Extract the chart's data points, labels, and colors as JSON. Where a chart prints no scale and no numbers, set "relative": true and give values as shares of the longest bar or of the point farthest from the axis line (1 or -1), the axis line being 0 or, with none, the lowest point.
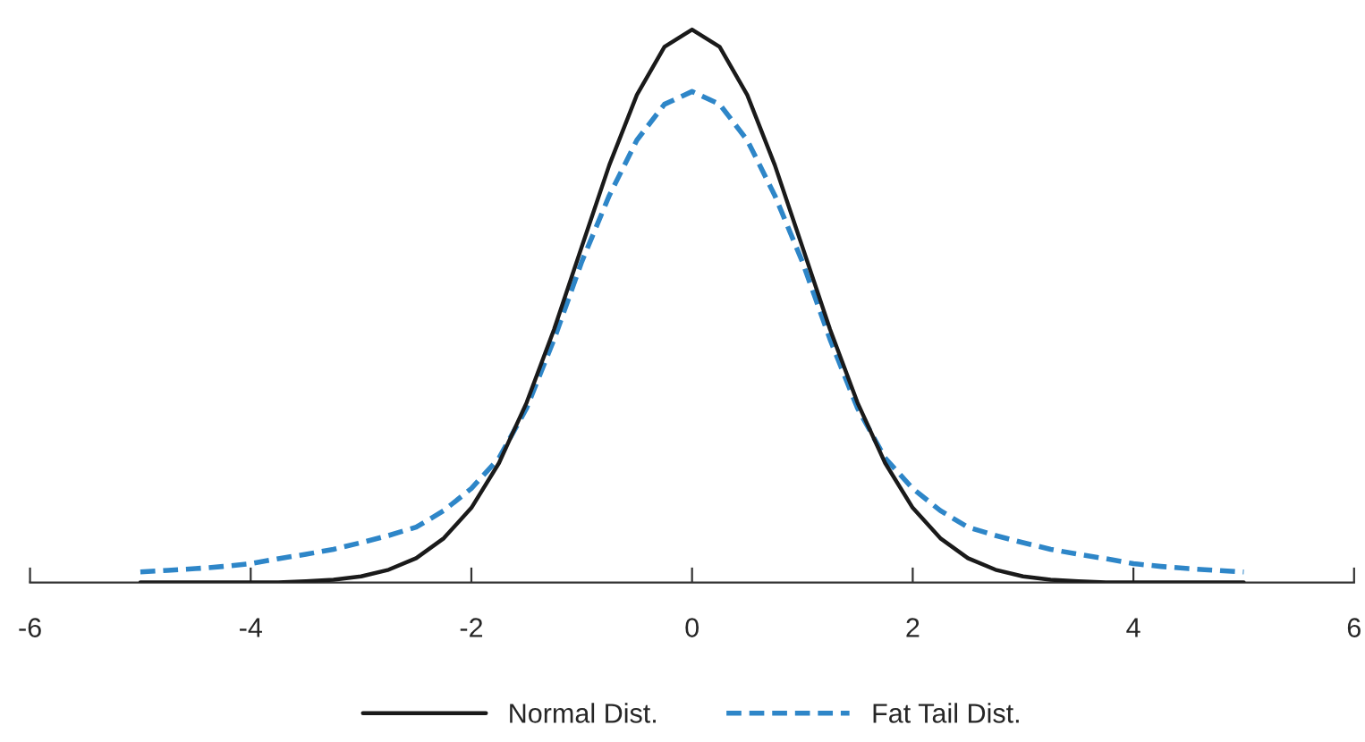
{
  "chart_data": {
    "type": "line",
    "relative": true,
    "x": [
      -5,
      -4.75,
      -4.5,
      -4.25,
      -4,
      -3.75,
      -3.5,
      -3.25,
      -3,
      -2.75,
      -2.5,
      -2.25,
      -2,
      -1.75,
      -1.5,
      -1.25,
      -1,
      -0.75,
      -0.5,
      -0.25,
      0,
      0.25,
      0.5,
      0.75,
      1,
      1.25,
      1.5,
      1.75,
      2,
      2.25,
      2.5,
      2.75,
      3,
      3.25,
      3.5,
      3.75,
      4,
      4.25,
      4.5,
      4.75,
      5
    ],
    "xlim": [
      -6,
      6
    ],
    "xticks": [
      -6,
      -4,
      -2,
      0,
      2,
      4,
      6
    ],
    "series": [
      {
        "name": "Normal Dist.",
        "color": "#1a1a1a",
        "line_style": "solid",
        "values": [
          0,
          0,
          0,
          0,
          0,
          0,
          0.002,
          0.005,
          0.011,
          0.023,
          0.044,
          0.08,
          0.135,
          0.216,
          0.325,
          0.458,
          0.607,
          0.755,
          0.882,
          0.969,
          1,
          0.969,
          0.882,
          0.755,
          0.607,
          0.458,
          0.325,
          0.216,
          0.135,
          0.08,
          0.044,
          0.023,
          0.011,
          0.005,
          0.002,
          0,
          0,
          0,
          0,
          0,
          0
        ]
      },
      {
        "name": "Fat Tail Dist.",
        "color": "#2e86c8",
        "line_style": "dashed",
        "values": [
          0.019,
          0.022,
          0.025,
          0.029,
          0.034,
          0.043,
          0.051,
          0.06,
          0.072,
          0.085,
          0.1,
          0.13,
          0.17,
          0.225,
          0.315,
          0.44,
          0.58,
          0.7,
          0.8,
          0.865,
          0.888,
          0.865,
          0.8,
          0.7,
          0.58,
          0.44,
          0.315,
          0.225,
          0.17,
          0.13,
          0.1,
          0.085,
          0.072,
          0.06,
          0.051,
          0.043,
          0.034,
          0.029,
          0.025,
          0.022,
          0.019
        ]
      }
    ],
    "legend": "bottom",
    "grid": false,
    "marker": "none"
  }
}
